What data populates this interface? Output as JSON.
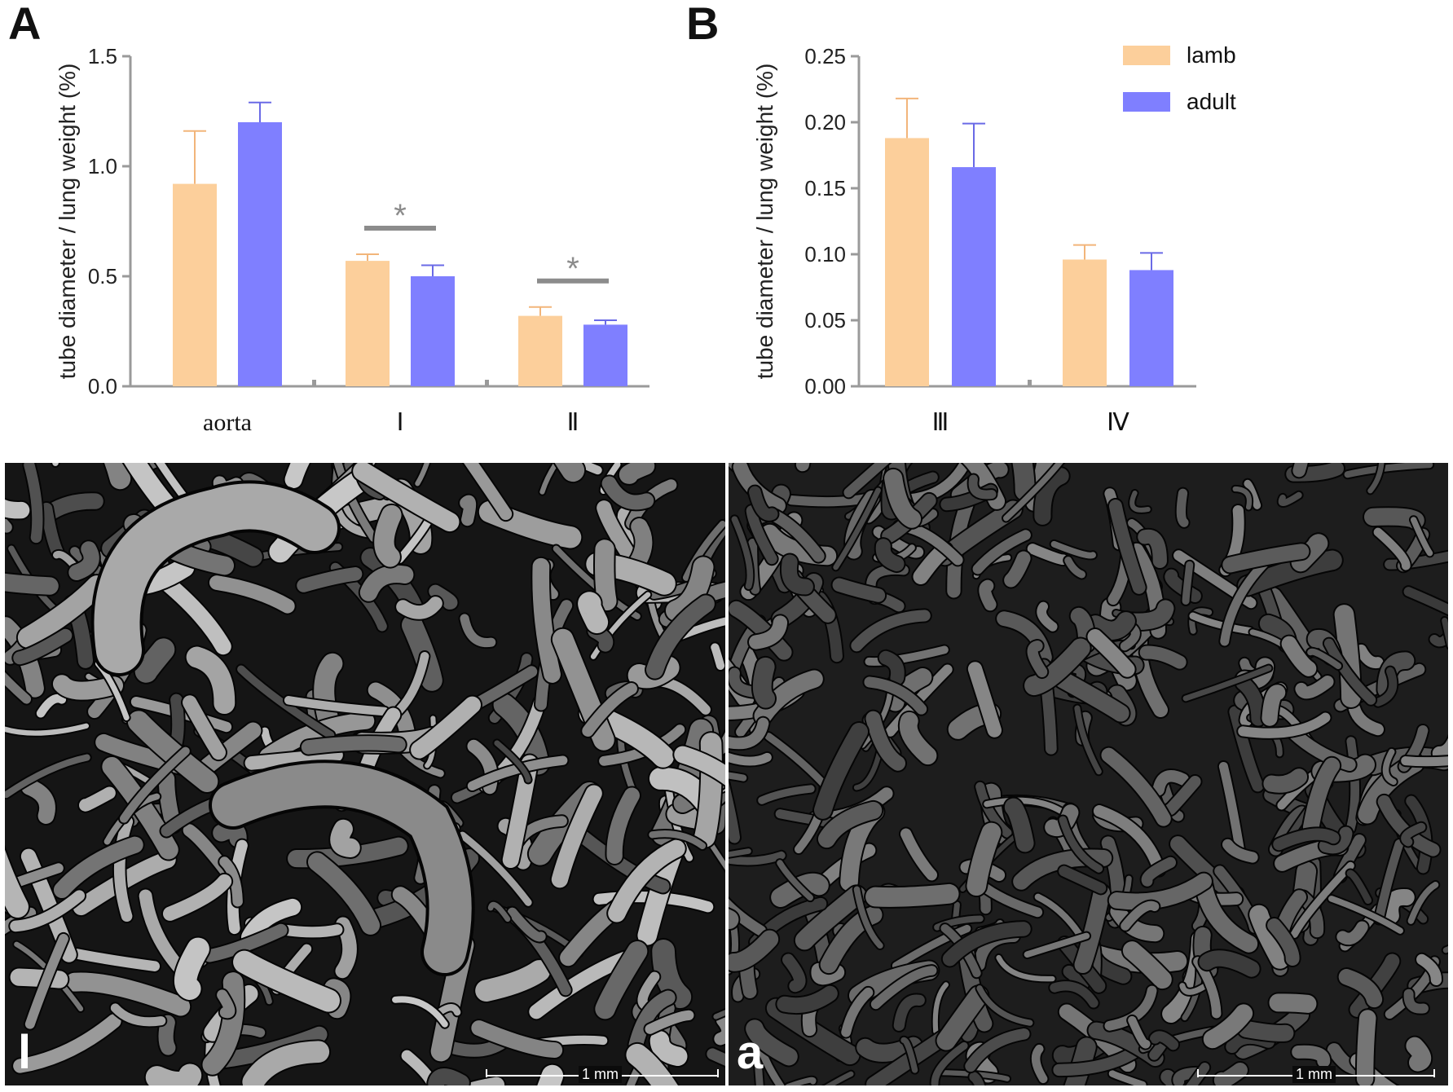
{
  "colors": {
    "lamb": "#fccf9b",
    "adult": "#7f7fff",
    "axis": "#9a9a9a",
    "sig": "#8c8c8c",
    "errLamb": "#f2b57a",
    "errAdult": "#6a6ae6"
  },
  "legend": [
    {
      "label": "lamb",
      "series": "lamb"
    },
    {
      "label": "adult",
      "series": "adult"
    }
  ],
  "chart_data": [
    {
      "panel": "A",
      "type": "bar",
      "ylabel": "tube diameter / lung weight (%)",
      "ylim": [
        0,
        1.5
      ],
      "yticks": [
        "0.0",
        "0.5",
        "1.0",
        "1.5"
      ],
      "categories": [
        "aorta",
        "I",
        "II"
      ],
      "series": [
        {
          "name": "lamb",
          "values": [
            0.92,
            0.57,
            0.32
          ],
          "errors": [
            0.24,
            0.03,
            0.04
          ]
        },
        {
          "name": "adult",
          "values": [
            1.2,
            0.5,
            0.28
          ],
          "errors": [
            0.09,
            0.05,
            0.02
          ]
        }
      ],
      "significance": [
        {
          "category": "I",
          "label": "*"
        },
        {
          "category": "II",
          "label": "*"
        }
      ],
      "grid": false
    },
    {
      "panel": "B",
      "type": "bar",
      "ylabel": "tube diameter / lung weight (%)",
      "ylim": [
        0,
        0.25
      ],
      "yticks": [
        "0.00",
        "0.05",
        "0.10",
        "0.15",
        "0.20",
        "0.25"
      ],
      "categories": [
        "III",
        "IV"
      ],
      "series": [
        {
          "name": "lamb",
          "values": [
            0.188,
            0.096
          ],
          "errors": [
            0.03,
            0.011
          ]
        },
        {
          "name": "adult",
          "values": [
            0.166,
            0.088
          ],
          "errors": [
            0.033,
            0.013
          ]
        }
      ],
      "grid": false,
      "legend_position": "top-right"
    }
  ],
  "images": [
    {
      "corner_label": "l",
      "scale_bar": "1 mm",
      "brightness": "bright"
    },
    {
      "corner_label": "a",
      "scale_bar": "1 mm",
      "brightness": "dim"
    }
  ]
}
